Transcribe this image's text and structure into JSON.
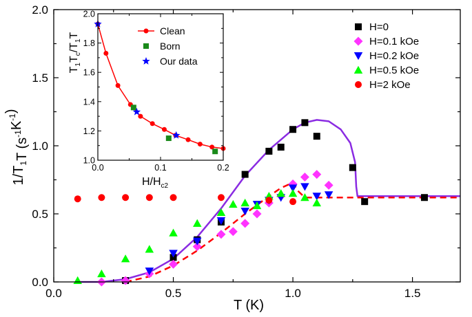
{
  "chart_data": [
    {
      "id": "main",
      "type": "scatter",
      "xlabel": "T (K)",
      "ylabel": "1/T1T (s-1K-1)",
      "xlim": [
        0.0,
        1.7
      ],
      "ylim": [
        0.0,
        2.0
      ],
      "xticks": [
        "0.0",
        "0.5",
        "1.0",
        "1.5"
      ],
      "yticks": [
        "0.0",
        "0.5",
        "1.0",
        "1.5",
        "2.0"
      ],
      "legend_position": "top-right",
      "series": [
        {
          "name": "H=0",
          "marker": "square",
          "color": "#000000",
          "x": [
            0.3,
            0.5,
            0.6,
            0.7,
            0.8,
            0.9,
            0.95,
            1.0,
            1.05,
            1.1,
            1.25,
            1.3,
            1.55
          ],
          "y": [
            0.01,
            0.18,
            0.31,
            0.44,
            0.79,
            0.96,
            0.99,
            1.12,
            1.17,
            1.07,
            0.84,
            0.59,
            0.62
          ]
        },
        {
          "name": "H=0.1 kOe",
          "marker": "diamond",
          "color": "#ff33ff",
          "x": [
            0.2,
            0.3,
            0.4,
            0.5,
            0.6,
            0.7,
            0.75,
            0.8,
            0.85,
            0.9,
            0.95,
            1.0,
            1.05,
            1.1,
            1.15
          ],
          "y": [
            0.0,
            0.01,
            0.06,
            0.13,
            0.26,
            0.35,
            0.37,
            0.43,
            0.5,
            0.58,
            0.63,
            0.72,
            0.77,
            0.79,
            0.71
          ]
        },
        {
          "name": "H=0.2 kOe",
          "marker": "triangle-down",
          "color": "#0000ff",
          "x": [
            0.4,
            0.5,
            0.6,
            0.7,
            0.8,
            0.85,
            0.9,
            0.95,
            1.0,
            1.05,
            1.1,
            1.15
          ],
          "y": [
            0.08,
            0.21,
            0.3,
            0.45,
            0.52,
            0.57,
            0.6,
            0.62,
            0.69,
            0.7,
            0.63,
            0.64
          ]
        },
        {
          "name": "H=0.5 kOe",
          "marker": "triangle-up",
          "color": "#00ff00",
          "x": [
            0.1,
            0.2,
            0.3,
            0.4,
            0.5,
            0.6,
            0.7,
            0.75,
            0.8,
            0.85,
            0.9,
            0.95,
            1.0,
            1.05,
            1.1
          ],
          "y": [
            0.01,
            0.06,
            0.17,
            0.24,
            0.36,
            0.43,
            0.51,
            0.57,
            0.58,
            0.56,
            0.63,
            0.65,
            0.65,
            0.62,
            0.58
          ]
        },
        {
          "name": "H=2 kOe",
          "marker": "circle",
          "color": "#ff0000",
          "x": [
            0.1,
            0.2,
            0.3,
            0.4,
            0.5,
            0.7,
            0.9,
            1.0
          ],
          "y": [
            0.61,
            0.62,
            0.62,
            0.62,
            0.62,
            0.62,
            0.6,
            0.59
          ]
        }
      ],
      "curves": [
        {
          "style": "solid",
          "color": "#8a2be2",
          "x": [
            0.1,
            0.2,
            0.3,
            0.4,
            0.5,
            0.6,
            0.7,
            0.8,
            0.9,
            1.0,
            1.05,
            1.1,
            1.15,
            1.2,
            1.24,
            1.26,
            1.265,
            1.27,
            1.3,
            1.45,
            1.6,
            1.7
          ],
          "y": [
            0.0,
            0.0,
            0.02,
            0.07,
            0.17,
            0.33,
            0.54,
            0.78,
            0.97,
            1.12,
            1.17,
            1.19,
            1.18,
            1.12,
            1.02,
            0.88,
            0.7,
            0.63,
            0.63,
            0.63,
            0.63,
            0.63
          ]
        },
        {
          "style": "dashed",
          "color": "#ff0000",
          "x": [
            0.3,
            0.4,
            0.5,
            0.6,
            0.7,
            0.8,
            0.9,
            0.95,
            1.0,
            1.02,
            1.05,
            1.2,
            1.5,
            1.7
          ],
          "y": [
            0.0,
            0.04,
            0.12,
            0.23,
            0.36,
            0.5,
            0.63,
            0.69,
            0.73,
            0.67,
            0.62,
            0.62,
            0.62,
            0.62
          ]
        }
      ]
    },
    {
      "id": "inset",
      "type": "line",
      "xlabel": "H/Hc2",
      "ylabel": "T1Tc/T1T",
      "xlim": [
        0.0,
        0.2
      ],
      "ylim": [
        1.0,
        2.0
      ],
      "xticks": [
        "0.0",
        "0.1",
        "0.2"
      ],
      "yticks": [
        "1.0",
        "1.2",
        "1.4",
        "1.6",
        "1.8",
        "2.0"
      ],
      "legend_position": "top-right",
      "series": [
        {
          "name": "Clean",
          "marker": "circle-line",
          "color": "#ff0000",
          "x": [
            0.0,
            0.013,
            0.032,
            0.052,
            0.068,
            0.087,
            0.106,
            0.124,
            0.144,
            0.163,
            0.182,
            0.2
          ],
          "y": [
            1.93,
            1.73,
            1.51,
            1.38,
            1.3,
            1.25,
            1.21,
            1.17,
            1.14,
            1.11,
            1.09,
            1.08
          ]
        },
        {
          "name": "Born",
          "marker": "square",
          "color": "#1a8a1a",
          "x": [
            0.057,
            0.113,
            0.187
          ],
          "y": [
            1.36,
            1.15,
            1.06
          ]
        },
        {
          "name": "Our data",
          "marker": "star",
          "color": "#0000ff",
          "x": [
            0.0,
            0.062,
            0.125
          ],
          "y": [
            1.93,
            1.33,
            1.17
          ]
        }
      ]
    }
  ]
}
